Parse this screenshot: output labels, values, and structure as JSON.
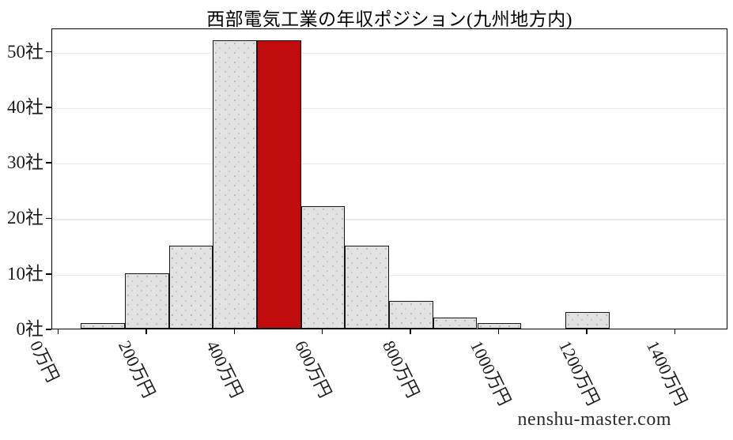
{
  "watermark": "nenshu-master.com",
  "colors": {
    "highlight_red": "#c00c0c",
    "bar_fill": "#e2e2e2",
    "bar_edge": "#161616",
    "gridline": "#e8e8ea",
    "axis": "#000000"
  },
  "chart_data": {
    "type": "bar",
    "subtype": "histogram",
    "title": "西部電気工業の年収ポジション(九州地方内)",
    "x_unit": "万円",
    "y_unit": "社",
    "bin_width": 100,
    "bin_centers": [
      100,
      200,
      300,
      400,
      500,
      600,
      700,
      800,
      900,
      1000,
      1100,
      1200
    ],
    "values": [
      1,
      10,
      15,
      52,
      52,
      22,
      15,
      5,
      2,
      1,
      0,
      3
    ],
    "highlight_index": 4,
    "highlight_bin_center": 500,
    "x_ticks": {
      "values": [
        0,
        200,
        400,
        600,
        800,
        1000,
        1200,
        1400
      ],
      "labels": [
        "0万円",
        "200万円",
        "400万円",
        "600万円",
        "800万円",
        "1000万円",
        "1200万円",
        "1400万円"
      ]
    },
    "y_ticks": {
      "values": [
        0,
        10,
        20,
        30,
        40,
        50
      ],
      "labels": [
        "0社",
        "10社",
        "20社",
        "30社",
        "40社",
        "50社"
      ]
    },
    "xlim": [
      -15,
      1520
    ],
    "ylim": [
      0,
      54.2
    ],
    "grid": "y",
    "legend": null
  }
}
